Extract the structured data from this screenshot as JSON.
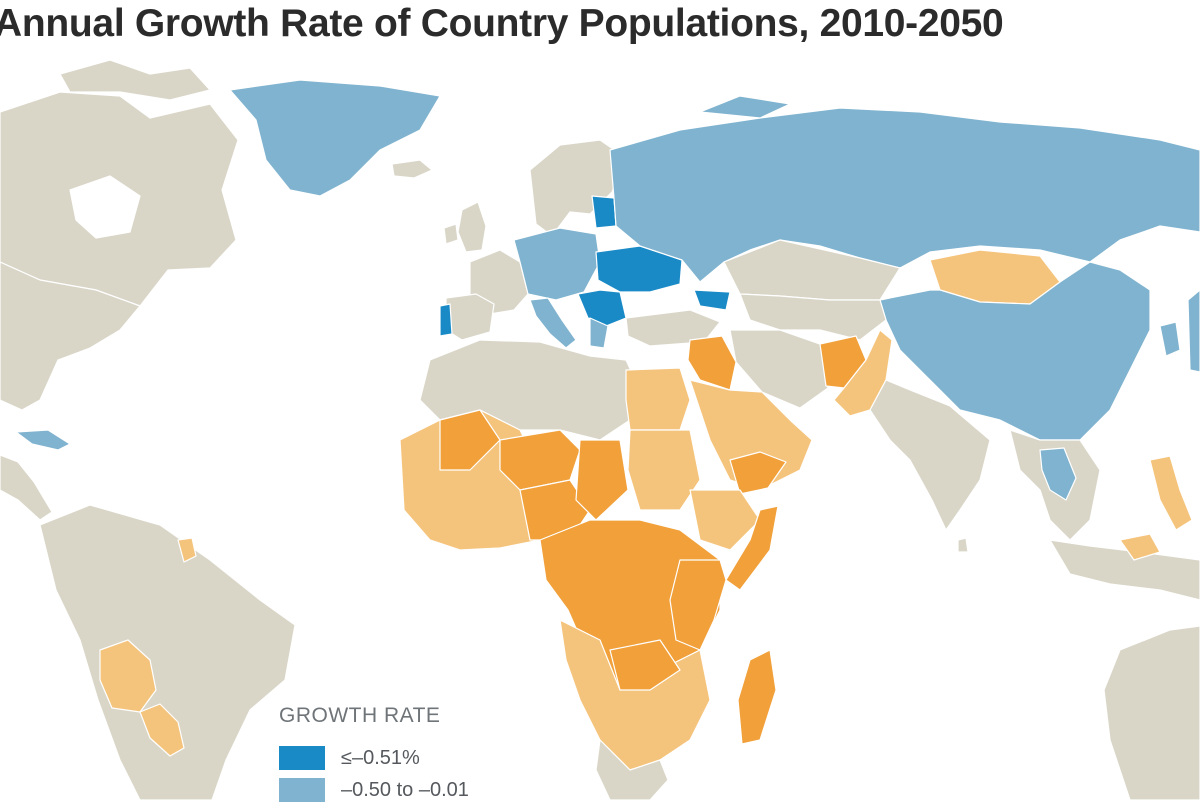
{
  "title": "Annual Growth Rate of Country Populations, 2010-2050",
  "legend": {
    "title": "GROWTH RATE",
    "items": [
      {
        "label": "≤–0.51%",
        "color": "#1a8ac7"
      },
      {
        "label": "–0.50 to –0.01",
        "color": "#7fb3cf"
      }
    ]
  },
  "colors": {
    "ocean": "#ffffff",
    "land_neutral": "#d9d6c8",
    "growth_high": "#f1a03a",
    "growth_medium": "#f5c47c",
    "decline_mild": "#7fb3cf",
    "decline_strong": "#1a8ac7",
    "border": "#bcb9ad"
  }
}
